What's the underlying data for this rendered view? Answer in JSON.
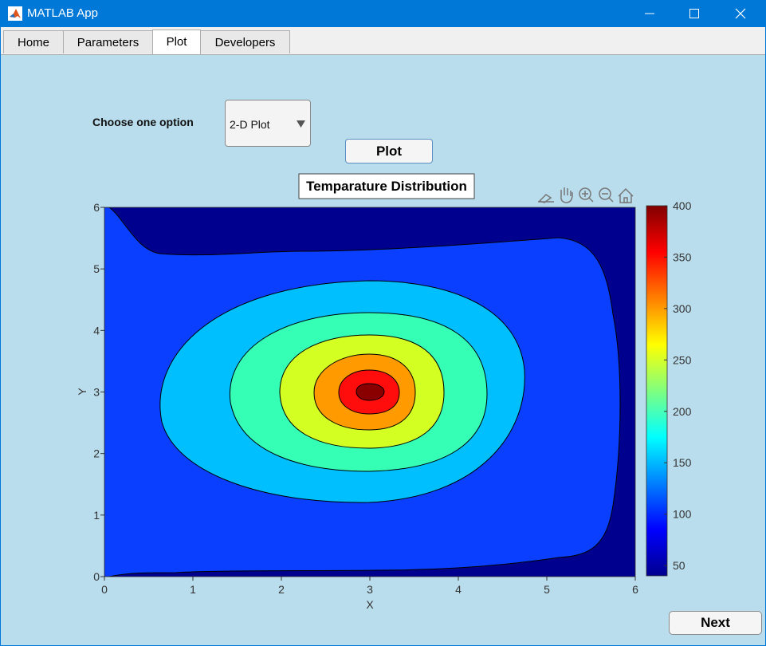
{
  "window": {
    "title": "MATLAB App"
  },
  "tabs": [
    {
      "label": "Home",
      "active": false
    },
    {
      "label": "Parameters",
      "active": false
    },
    {
      "label": "Plot",
      "active": true
    },
    {
      "label": "Developers",
      "active": false
    }
  ],
  "controls": {
    "choose_label": "Choose one option",
    "dropdown_value": "2-D Plot",
    "plot_button": "Plot",
    "next_button": "Next"
  },
  "toolbar": {
    "icons": [
      "brush-icon",
      "pan-hand-icon",
      "zoom-in-icon",
      "zoom-out-icon",
      "home-icon"
    ]
  },
  "chart_data": {
    "type": "contour",
    "title": "Temparature Distribution",
    "xlabel": "X",
    "ylabel": "Y",
    "xlim": [
      0,
      6
    ],
    "ylim": [
      0,
      6
    ],
    "xticks": [
      "0",
      "1",
      "2",
      "3",
      "4",
      "5",
      "6"
    ],
    "yticks": [
      "0",
      "1",
      "2",
      "3",
      "4",
      "5",
      "6"
    ],
    "colorbar": {
      "min": 40,
      "max": 400,
      "ticks": [
        "50",
        "100",
        "150",
        "200",
        "250",
        "300",
        "350",
        "400"
      ],
      "colormap": "jet"
    },
    "peak": {
      "x": 3,
      "y": 3,
      "value": 400
    }
  }
}
